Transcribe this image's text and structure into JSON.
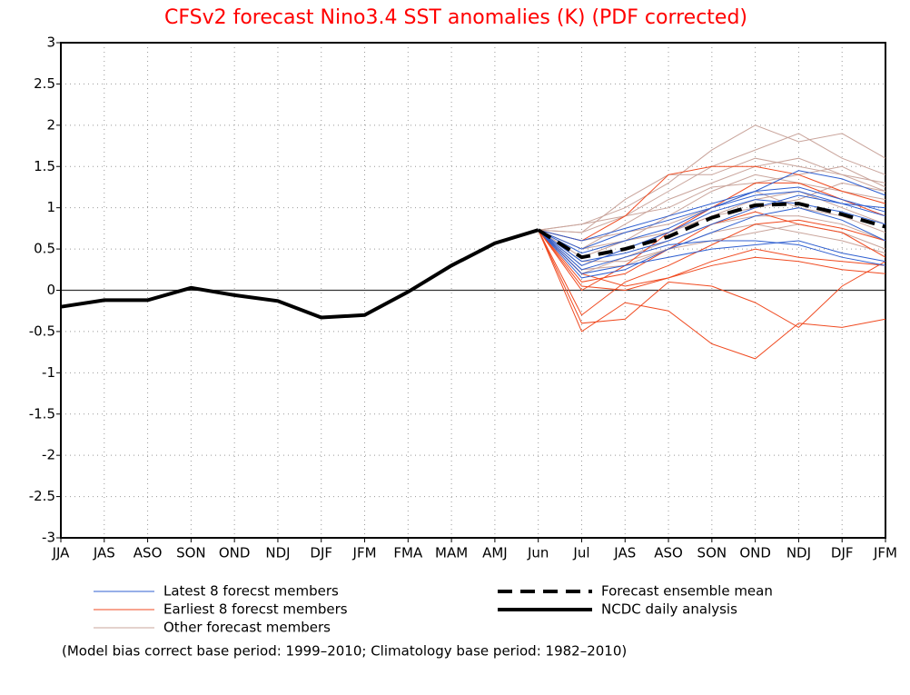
{
  "chart_data": {
    "type": "line",
    "title": "CFSv2 forecast Nino3.4 SST anomalies (K) (PDF corrected)",
    "note": "(Model bias correct base period: 1999–2010; Climatology base period: 1982–2010)",
    "categories": [
      "JJA",
      "JAS",
      "ASO",
      "SON",
      "OND",
      "NDJ",
      "DJF",
      "JFM",
      "FMA",
      "MAM",
      "AMJ",
      "Jun",
      "Jul",
      "JAS",
      "ASO",
      "SON",
      "OND",
      "NDJ",
      "DJF",
      "JFM"
    ],
    "ylim": [
      -3,
      3
    ],
    "yticks": [
      -3,
      -2.5,
      -2,
      -1.5,
      -1,
      -0.5,
      0,
      0.5,
      1,
      1.5,
      2,
      2.5,
      3
    ],
    "grid": true,
    "series": [
      {
        "name": "Latest 8 forecst members",
        "color": "#2f5fd0",
        "members": [
          [
            null,
            null,
            null,
            null,
            null,
            null,
            null,
            null,
            null,
            null,
            null,
            0.73,
            0.6,
            0.75,
            0.9,
            1.05,
            1.2,
            1.45,
            1.35,
            1.15
          ],
          [
            null,
            null,
            null,
            null,
            null,
            null,
            null,
            null,
            null,
            null,
            null,
            0.73,
            0.35,
            0.45,
            0.6,
            0.8,
            1.0,
            1.15,
            1.05,
            0.9
          ],
          [
            null,
            null,
            null,
            null,
            null,
            null,
            null,
            null,
            null,
            null,
            null,
            0.73,
            0.2,
            0.3,
            0.4,
            0.5,
            0.55,
            0.6,
            0.45,
            0.35
          ],
          [
            null,
            null,
            null,
            null,
            null,
            null,
            null,
            null,
            null,
            null,
            null,
            0.73,
            0.3,
            0.5,
            0.7,
            0.95,
            1.1,
            1.05,
            0.95,
            0.8
          ],
          [
            null,
            null,
            null,
            null,
            null,
            null,
            null,
            null,
            null,
            null,
            null,
            0.73,
            0.15,
            0.25,
            0.5,
            0.7,
            0.9,
            1.0,
            0.85,
            0.6
          ],
          [
            null,
            null,
            null,
            null,
            null,
            null,
            null,
            null,
            null,
            null,
            null,
            0.73,
            0.45,
            0.6,
            0.75,
            1.0,
            1.2,
            1.25,
            1.1,
            0.95
          ],
          [
            null,
            null,
            null,
            null,
            null,
            null,
            null,
            null,
            null,
            null,
            null,
            0.73,
            0.25,
            0.4,
            0.55,
            0.6,
            0.6,
            0.55,
            0.4,
            0.3
          ],
          [
            null,
            null,
            null,
            null,
            null,
            null,
            null,
            null,
            null,
            null,
            null,
            0.73,
            0.5,
            0.7,
            0.85,
            1.0,
            1.15,
            1.2,
            1.05,
            1.0
          ]
        ]
      },
      {
        "name": "Earliest 8 forecst members",
        "color": "#f04a20",
        "members": [
          [
            null,
            null,
            null,
            null,
            null,
            null,
            null,
            null,
            null,
            null,
            null,
            0.73,
            -0.5,
            -0.15,
            -0.25,
            -0.65,
            -0.83,
            -0.4,
            -0.45,
            -0.35
          ],
          [
            null,
            null,
            null,
            null,
            null,
            null,
            null,
            null,
            null,
            null,
            null,
            0.73,
            -0.4,
            -0.35,
            0.1,
            0.05,
            -0.15,
            -0.45,
            0.05,
            0.35
          ],
          [
            null,
            null,
            null,
            null,
            null,
            null,
            null,
            null,
            null,
            null,
            null,
            0.73,
            -0.3,
            0.1,
            0.3,
            0.55,
            0.8,
            0.85,
            0.75,
            0.6
          ],
          [
            null,
            null,
            null,
            null,
            null,
            null,
            null,
            null,
            null,
            null,
            null,
            0.73,
            0.05,
            0.0,
            0.15,
            0.3,
            0.4,
            0.35,
            0.25,
            0.2
          ],
          [
            null,
            null,
            null,
            null,
            null,
            null,
            null,
            null,
            null,
            null,
            null,
            0.73,
            0.6,
            0.9,
            1.4,
            1.5,
            1.5,
            1.4,
            1.2,
            1.05
          ],
          [
            null,
            null,
            null,
            null,
            null,
            null,
            null,
            null,
            null,
            null,
            null,
            0.73,
            0.1,
            0.2,
            0.5,
            0.8,
            0.95,
            0.8,
            0.7,
            0.4
          ],
          [
            null,
            null,
            null,
            null,
            null,
            null,
            null,
            null,
            null,
            null,
            null,
            0.73,
            0,
            0.3,
            0.7,
            1.0,
            1.3,
            1.3,
            1.1,
            0.9
          ],
          [
            null,
            null,
            null,
            null,
            null,
            null,
            null,
            null,
            null,
            null,
            null,
            0.73,
            0.2,
            0.05,
            0.15,
            0.35,
            0.5,
            0.4,
            0.35,
            0.3
          ]
        ]
      },
      {
        "name": "Other forecast members",
        "color": "#c9a49b",
        "members": [
          [
            null,
            null,
            null,
            null,
            null,
            null,
            null,
            null,
            null,
            null,
            null,
            0.73,
            0.8,
            1.0,
            1.3,
            1.7,
            2.0,
            1.8,
            1.9,
            1.6
          ],
          [
            null,
            null,
            null,
            null,
            null,
            null,
            null,
            null,
            null,
            null,
            null,
            0.73,
            0.7,
            0.9,
            1.2,
            1.5,
            1.7,
            1.9,
            1.6,
            1.4
          ],
          [
            null,
            null,
            null,
            null,
            null,
            null,
            null,
            null,
            null,
            null,
            null,
            0.73,
            0.5,
            0.8,
            1.1,
            1.3,
            1.5,
            1.6,
            1.4,
            1.3
          ],
          [
            null,
            null,
            null,
            null,
            null,
            null,
            null,
            null,
            null,
            null,
            null,
            0.73,
            0.4,
            0.6,
            0.9,
            1.2,
            1.4,
            1.3,
            1.2,
            1.1
          ],
          [
            null,
            null,
            null,
            null,
            null,
            null,
            null,
            null,
            null,
            null,
            null,
            0.73,
            0.3,
            0.5,
            0.7,
            0.9,
            1.1,
            1.2,
            1.0,
            0.8
          ],
          [
            null,
            null,
            null,
            null,
            null,
            null,
            null,
            null,
            null,
            null,
            null,
            0.73,
            0.6,
            0.7,
            0.8,
            1.0,
            1.2,
            1.0,
            0.9,
            0.7
          ],
          [
            null,
            null,
            null,
            null,
            null,
            null,
            null,
            null,
            null,
            null,
            null,
            0.73,
            0.2,
            0.4,
            0.6,
            0.8,
            0.9,
            0.9,
            0.8,
            0.6
          ],
          [
            null,
            null,
            null,
            null,
            null,
            null,
            null,
            null,
            null,
            null,
            null,
            0.73,
            0.5,
            0.6,
            0.7,
            0.9,
            1.0,
            1.1,
            1.3,
            1.2
          ],
          [
            null,
            null,
            null,
            null,
            null,
            null,
            null,
            null,
            null,
            null,
            null,
            0.73,
            0.7,
            1.1,
            1.4,
            1.4,
            1.6,
            1.5,
            1.4,
            1.2
          ],
          [
            null,
            null,
            null,
            null,
            null,
            null,
            null,
            null,
            null,
            null,
            null,
            0.73,
            0.35,
            0.35,
            0.5,
            0.6,
            0.7,
            0.8,
            0.7,
            0.5
          ],
          [
            null,
            null,
            null,
            null,
            null,
            null,
            null,
            null,
            null,
            null,
            null,
            0.73,
            0.25,
            0.3,
            0.5,
            0.7,
            0.8,
            0.7,
            0.6,
            0.45
          ],
          [
            null,
            null,
            null,
            null,
            null,
            null,
            null,
            null,
            null,
            null,
            null,
            0.73,
            0.8,
            0.9,
            1.0,
            1.25,
            1.3,
            1.4,
            1.5,
            1.25
          ]
        ]
      },
      {
        "name": "Forecast ensemble mean",
        "color": "#000000",
        "dashed": true,
        "values": [
          null,
          null,
          null,
          null,
          null,
          null,
          null,
          null,
          null,
          null,
          null,
          0.73,
          0.4,
          0.5,
          0.65,
          0.88,
          1.03,
          1.05,
          0.92,
          0.77
        ]
      },
      {
        "name": "NCDC daily analysis",
        "color": "#000000",
        "dashed": false,
        "values": [
          -0.2,
          -0.12,
          -0.12,
          0.03,
          -0.06,
          -0.13,
          -0.33,
          -0.3,
          -0.02,
          0.3,
          0.57,
          0.73,
          null,
          null,
          null,
          null,
          null,
          null,
          null,
          null
        ]
      }
    ]
  }
}
